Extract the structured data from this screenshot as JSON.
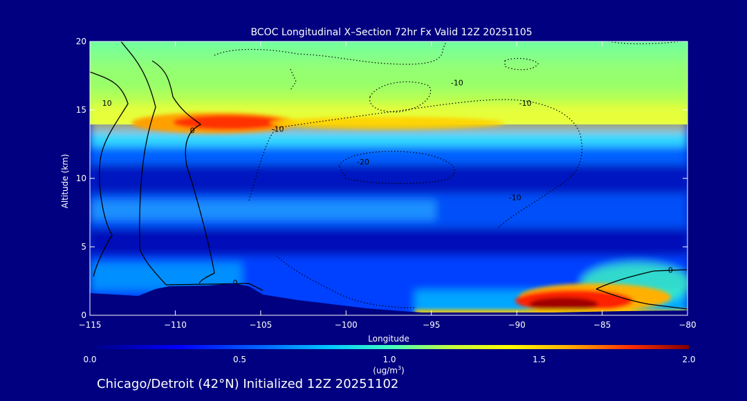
{
  "chart_data": {
    "type": "heatmap",
    "title": "BCOC Longitudinal X–Section 72hr  Fx Valid 12Z 20251105",
    "xlabel": "Longitude",
    "ylabel": "Altitude (km)",
    "xlim": [
      -115,
      -80
    ],
    "ylim": [
      0,
      20
    ],
    "x_ticks": [
      "−115",
      "−110",
      "−105",
      "−100",
      "−95",
      "−90",
      "−85",
      "−80"
    ],
    "x_tick_values": [
      -115,
      -110,
      -105,
      -100,
      -95,
      -90,
      -85,
      -80
    ],
    "y_ticks": [
      "0",
      "5",
      "10",
      "15",
      "20"
    ],
    "y_tick_values": [
      0,
      5,
      10,
      15,
      20
    ],
    "colorbar": {
      "range": [
        0.0,
        2.0
      ],
      "ticks": [
        "0.0",
        "0.5",
        "1.0",
        "1.5",
        "2.0"
      ],
      "tick_values": [
        0.0,
        0.5,
        1.0,
        1.5,
        2.0
      ],
      "unit_label": "(ug/m",
      "unit_sup": "3",
      "unit_close": ")"
    },
    "colors": {
      "background": "#000080",
      "terrain": "#000080",
      "high": "#c80000",
      "low": "#0000a0"
    },
    "contour_labels": [
      {
        "text": "10",
        "lon": -114.0,
        "alt": 15.5
      },
      {
        "text": "0",
        "lon": -109.0,
        "alt": 13.5
      },
      {
        "text": "-10",
        "lon": -104.0,
        "alt": 13.6
      },
      {
        "text": "-10",
        "lon": -93.5,
        "alt": 17.0
      },
      {
        "text": "-10",
        "lon": -89.5,
        "alt": 15.5
      },
      {
        "text": "-20",
        "lon": -99.0,
        "alt": 11.2
      },
      {
        "text": "-10",
        "lon": -90.1,
        "alt": 8.6
      },
      {
        "text": "0",
        "lon": -106.5,
        "alt": 2.4
      },
      {
        "text": "0",
        "lon": -81.0,
        "alt": 3.3
      }
    ],
    "footer": "Chicago/Detroit (42°N) Initialized 12Z 20251102"
  }
}
